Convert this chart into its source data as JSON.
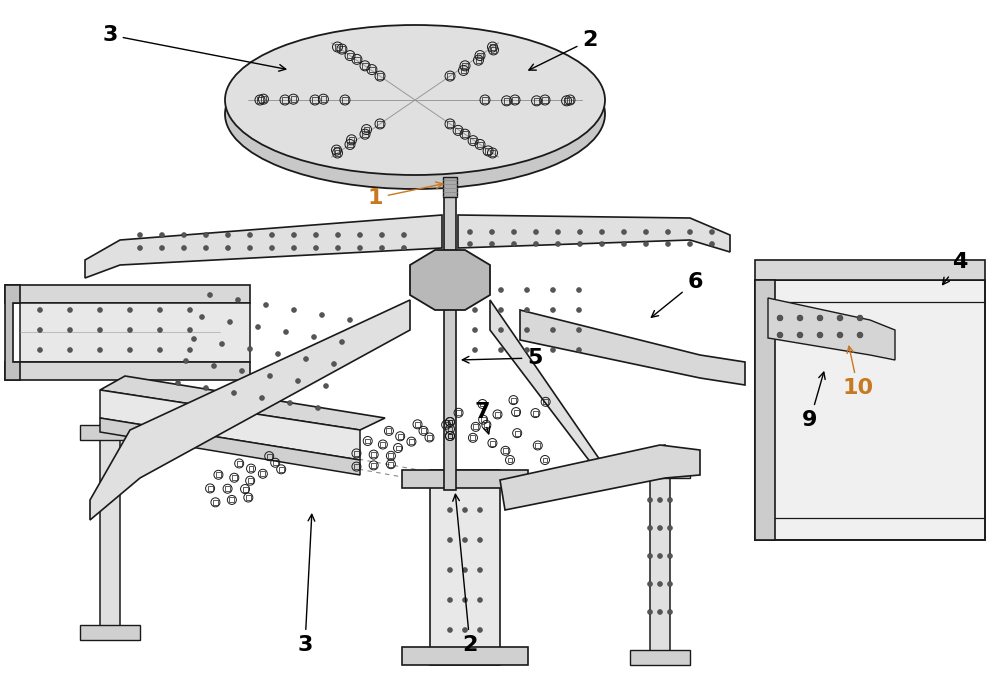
{
  "bg": "#ffffff",
  "lc": "#1a1a1a",
  "lf": "#e8e8e8",
  "lm": "#d0d0d0",
  "ld": "#b8b8b8",
  "label_black": "#000000",
  "label_orange": "#c87820",
  "figsize": [
    10.0,
    6.98
  ],
  "dpi": 100
}
